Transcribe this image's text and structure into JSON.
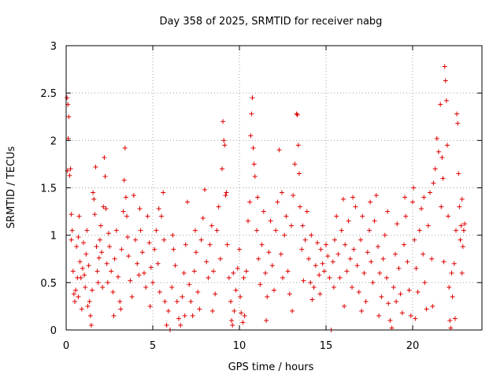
{
  "chart_data": {
    "type": "scatter",
    "title": "Day 358 of 2025, SRMTID for receiver nabg",
    "xlabel": "GPS time / hours",
    "ylabel": "SRMTID / TECUs",
    "xlim": [
      0,
      24
    ],
    "ylim": [
      0,
      3
    ],
    "x_ticks": [
      0,
      5,
      10,
      15,
      20
    ],
    "x_tick_labels": [
      "0",
      "5",
      "10",
      "15",
      "20"
    ],
    "y_ticks": [
      0,
      0.5,
      1,
      1.5,
      2,
      2.5,
      3
    ],
    "y_tick_labels": [
      "0",
      "0.5",
      "1",
      "1.5",
      "2",
      "2.5",
      "3"
    ],
    "grid": true,
    "marker": "+",
    "marker_color": "#e00000",
    "series": [
      {
        "name": "SRMTID",
        "points": [
          [
            0.05,
            2.45
          ],
          [
            0.1,
            2.38
          ],
          [
            0.15,
            2.25
          ],
          [
            0.12,
            2.02
          ],
          [
            0.08,
            1.68
          ],
          [
            0.2,
            1.63
          ],
          [
            0.25,
            1.7
          ],
          [
            0.3,
            1.22
          ],
          [
            0.35,
            1.05
          ],
          [
            0.4,
            0.62
          ],
          [
            0.45,
            0.38
          ],
          [
            0.5,
            0.3
          ],
          [
            0.55,
            0.42
          ],
          [
            0.6,
            0.88
          ],
          [
            0.65,
            0.55
          ],
          [
            0.7,
            0.98
          ],
          [
            0.75,
            1.2
          ],
          [
            0.8,
            0.72
          ],
          [
            0.85,
            0.55
          ],
          [
            0.9,
            0.22
          ],
          [
            0.95,
            0.65
          ],
          [
            1.0,
            0.92
          ],
          [
            1.05,
            0.58
          ],
          [
            1.1,
            0.45
          ],
          [
            1.15,
            0.8
          ],
          [
            1.2,
            1.05
          ],
          [
            1.3,
            0.68
          ],
          [
            1.35,
            0.3
          ],
          [
            1.4,
            0.15
          ],
          [
            1.45,
            0.05
          ],
          [
            1.5,
            0.42
          ],
          [
            1.55,
            1.45
          ],
          [
            1.6,
            1.38
          ],
          [
            1.65,
            1.22
          ],
          [
            1.7,
            1.72
          ],
          [
            1.75,
            0.88
          ],
          [
            1.8,
            0.62
          ],
          [
            1.85,
            0.5
          ],
          [
            1.9,
            0.76
          ],
          [
            1.95,
            0.95
          ],
          [
            2.0,
            1.1
          ],
          [
            2.05,
            0.82
          ],
          [
            2.1,
            0.45
          ],
          [
            2.15,
            1.3
          ],
          [
            2.2,
            1.82
          ],
          [
            2.25,
            1.62
          ],
          [
            2.3,
            1.28
          ],
          [
            2.35,
            0.7
          ],
          [
            2.4,
            0.5
          ],
          [
            2.5,
            0.88
          ],
          [
            2.6,
            0.62
          ],
          [
            2.7,
            0.4
          ],
          [
            2.8,
            0.75
          ],
          [
            2.9,
            1.05
          ],
          [
            3.0,
            0.56
          ],
          [
            3.1,
            0.3
          ],
          [
            3.15,
            0.22
          ],
          [
            3.2,
            0.85
          ],
          [
            3.3,
            1.25
          ],
          [
            3.35,
            1.58
          ],
          [
            3.4,
            1.92
          ],
          [
            3.45,
            1.4
          ],
          [
            3.5,
            1.2
          ],
          [
            3.6,
            0.78
          ],
          [
            3.7,
            0.52
          ],
          [
            3.8,
            0.35
          ],
          [
            3.9,
            1.42
          ],
          [
            4.0,
            0.95
          ],
          [
            4.1,
            0.7
          ],
          [
            4.2,
            0.58
          ],
          [
            4.3,
            1.05
          ],
          [
            4.4,
            0.82
          ],
          [
            4.5,
            0.6
          ],
          [
            4.6,
            0.45
          ],
          [
            4.7,
            1.2
          ],
          [
            4.8,
            0.92
          ],
          [
            4.9,
            0.66
          ],
          [
            5.0,
            0.5
          ],
          [
            5.1,
            0.85
          ],
          [
            5.2,
            1.05
          ],
          [
            5.3,
            0.7
          ],
          [
            5.4,
            0.4
          ],
          [
            5.5,
            1.2
          ],
          [
            5.6,
            1.45
          ],
          [
            5.65,
            0.95
          ],
          [
            5.7,
            0.3
          ],
          [
            5.8,
            0.05
          ],
          [
            5.9,
            0.2
          ],
          [
            6.0,
            0.0
          ],
          [
            6.1,
            0.45
          ],
          [
            6.2,
            0.85
          ],
          [
            6.3,
            0.68
          ],
          [
            6.4,
            0.3
          ],
          [
            6.5,
            0.12
          ],
          [
            6.6,
            0.05
          ],
          [
            6.7,
            0.35
          ],
          [
            6.8,
            0.6
          ],
          [
            6.9,
            0.9
          ],
          [
            7.0,
            1.35
          ],
          [
            7.1,
            0.48
          ],
          [
            7.2,
            0.3
          ],
          [
            7.3,
            0.15
          ],
          [
            7.4,
            0.62
          ],
          [
            7.5,
            0.82
          ],
          [
            7.6,
            0.4
          ],
          [
            7.7,
            0.22
          ],
          [
            7.8,
            0.95
          ],
          [
            7.9,
            1.18
          ],
          [
            8.0,
            1.48
          ],
          [
            8.1,
            0.72
          ],
          [
            8.2,
            0.55
          ],
          [
            8.3,
            0.9
          ],
          [
            8.4,
            1.1
          ],
          [
            8.5,
            0.62
          ],
          [
            8.6,
            0.38
          ],
          [
            8.7,
            1.05
          ],
          [
            8.8,
            1.3
          ],
          [
            8.9,
            0.75
          ],
          [
            9.0,
            1.7
          ],
          [
            9.05,
            2.2
          ],
          [
            9.1,
            2.0
          ],
          [
            9.15,
            1.95
          ],
          [
            9.2,
            1.42
          ],
          [
            9.3,
            0.9
          ],
          [
            9.4,
            0.55
          ],
          [
            9.5,
            0.3
          ],
          [
            9.55,
            0.1
          ],
          [
            9.6,
            0.05
          ],
          [
            9.7,
            0.2
          ],
          [
            9.8,
            0.42
          ],
          [
            9.9,
            0.65
          ],
          [
            10.0,
            0.85
          ],
          [
            10.05,
            0.35
          ],
          [
            10.1,
            0.18
          ],
          [
            10.2,
            0.08
          ],
          [
            10.3,
            0.15
          ],
          [
            10.4,
            0.62
          ],
          [
            10.5,
            1.15
          ],
          [
            10.6,
            1.35
          ],
          [
            10.65,
            2.05
          ],
          [
            10.7,
            2.28
          ],
          [
            10.75,
            2.45
          ],
          [
            10.8,
            1.92
          ],
          [
            10.85,
            1.75
          ],
          [
            10.9,
            1.62
          ],
          [
            11.0,
            1.05
          ],
          [
            11.1,
            0.75
          ],
          [
            11.2,
            0.48
          ],
          [
            11.3,
            0.9
          ],
          [
            11.4,
            1.25
          ],
          [
            11.5,
            0.6
          ],
          [
            11.6,
            0.35
          ],
          [
            11.7,
            0.82
          ],
          [
            11.8,
            1.15
          ],
          [
            11.9,
            0.68
          ],
          [
            12.0,
            0.42
          ],
          [
            12.1,
            1.05
          ],
          [
            12.2,
            1.35
          ],
          [
            12.3,
            1.9
          ],
          [
            12.4,
            0.8
          ],
          [
            12.5,
            0.55
          ],
          [
            12.6,
            1.0
          ],
          [
            12.7,
            1.2
          ],
          [
            12.8,
            0.62
          ],
          [
            12.9,
            0.38
          ],
          [
            13.0,
            1.1
          ],
          [
            13.1,
            1.42
          ],
          [
            13.2,
            1.75
          ],
          [
            13.3,
            2.28
          ],
          [
            13.35,
            2.27
          ],
          [
            13.4,
            1.95
          ],
          [
            13.45,
            1.65
          ],
          [
            13.5,
            1.3
          ],
          [
            13.6,
            0.85
          ],
          [
            13.7,
            0.52
          ],
          [
            13.8,
            0.95
          ],
          [
            13.9,
            1.25
          ],
          [
            14.0,
            0.75
          ],
          [
            14.1,
            0.5
          ],
          [
            14.2,
            0.32
          ],
          [
            14.3,
            0.45
          ],
          [
            14.4,
            0.68
          ],
          [
            14.5,
            0.92
          ],
          [
            14.6,
            0.58
          ],
          [
            14.7,
            0.85
          ],
          [
            14.8,
            0.7
          ],
          [
            14.9,
            0.62
          ],
          [
            15.0,
            0.9
          ],
          [
            15.1,
            0.78
          ],
          [
            15.2,
            0.55
          ],
          [
            15.3,
            0.0
          ],
          [
            15.4,
            0.72
          ],
          [
            15.5,
            0.95
          ],
          [
            15.6,
            1.2
          ],
          [
            15.7,
            0.8
          ],
          [
            15.8,
            0.55
          ],
          [
            15.9,
            1.05
          ],
          [
            16.0,
            1.38
          ],
          [
            16.1,
            0.9
          ],
          [
            16.2,
            0.62
          ],
          [
            16.3,
            1.15
          ],
          [
            16.4,
            0.75
          ],
          [
            16.5,
            0.45
          ],
          [
            16.6,
            0.85
          ],
          [
            16.7,
            1.3
          ],
          [
            16.8,
            0.68
          ],
          [
            16.9,
            0.4
          ],
          [
            17.0,
            0.95
          ],
          [
            17.1,
            1.2
          ],
          [
            17.2,
            0.6
          ],
          [
            17.3,
            0.3
          ],
          [
            17.4,
            0.82
          ],
          [
            17.5,
            1.05
          ],
          [
            17.6,
            0.72
          ],
          [
            17.7,
            0.5
          ],
          [
            17.8,
            1.15
          ],
          [
            17.9,
            1.42
          ],
          [
            18.0,
            0.88
          ],
          [
            18.1,
            0.6
          ],
          [
            18.2,
            0.35
          ],
          [
            18.3,
            0.75
          ],
          [
            18.4,
            1.0
          ],
          [
            18.5,
            0.55
          ],
          [
            18.6,
            0.28
          ],
          [
            18.7,
            0.1
          ],
          [
            18.8,
            0.02
          ],
          [
            18.9,
            0.45
          ],
          [
            19.0,
            0.8
          ],
          [
            19.1,
            1.12
          ],
          [
            19.2,
            0.65
          ],
          [
            19.3,
            0.38
          ],
          [
            19.4,
            0.18
          ],
          [
            19.5,
            0.9
          ],
          [
            19.6,
            1.2
          ],
          [
            19.7,
            0.72
          ],
          [
            19.8,
            0.42
          ],
          [
            19.9,
            0.15
          ],
          [
            20.0,
            1.35
          ],
          [
            20.05,
            1.5
          ],
          [
            20.1,
            0.95
          ],
          [
            20.2,
            0.65
          ],
          [
            20.3,
            0.4
          ],
          [
            20.4,
            1.05
          ],
          [
            20.5,
            1.28
          ],
          [
            20.6,
            0.8
          ],
          [
            20.7,
            0.5
          ],
          [
            20.8,
            0.22
          ],
          [
            20.9,
            1.1
          ],
          [
            21.0,
            1.45
          ],
          [
            21.1,
            0.75
          ],
          [
            21.2,
            1.55
          ],
          [
            21.3,
            1.7
          ],
          [
            21.4,
            2.02
          ],
          [
            21.5,
            1.88
          ],
          [
            21.6,
            2.38
          ],
          [
            21.7,
            1.82
          ],
          [
            21.75,
            1.6
          ],
          [
            21.8,
            0.72
          ],
          [
            21.85,
            2.78
          ],
          [
            21.9,
            2.63
          ],
          [
            21.95,
            2.42
          ],
          [
            22.0,
            1.95
          ],
          [
            22.05,
            1.2
          ],
          [
            22.1,
            0.45
          ],
          [
            22.15,
            0.1
          ],
          [
            22.2,
            0.02
          ],
          [
            22.3,
            0.35
          ],
          [
            22.4,
            0.7
          ],
          [
            22.5,
            1.05
          ],
          [
            22.55,
            2.28
          ],
          [
            22.6,
            2.18
          ],
          [
            22.65,
            1.65
          ],
          [
            22.7,
            1.3
          ],
          [
            22.75,
            0.95
          ],
          [
            22.8,
            1.1
          ],
          [
            22.85,
            1.38
          ],
          [
            22.9,
            0.88
          ],
          [
            22.95,
            1.05
          ],
          [
            23.0,
            1.12
          ],
          [
            22.45,
            0.12
          ],
          [
            0.3,
            0.95
          ],
          [
            0.7,
            0.35
          ],
          [
            1.25,
            0.25
          ],
          [
            2.45,
            1.02
          ],
          [
            2.75,
            0.15
          ],
          [
            3.55,
            0.98
          ],
          [
            4.25,
            1.28
          ],
          [
            4.85,
            0.25
          ],
          [
            5.35,
            1.28
          ],
          [
            6.15,
            1.0
          ],
          [
            6.85,
            0.15
          ],
          [
            7.45,
            1.05
          ],
          [
            8.45,
            0.2
          ],
          [
            9.25,
            1.45
          ],
          [
            9.65,
            0.6
          ],
          [
            10.25,
            0.55
          ],
          [
            11.05,
            1.4
          ],
          [
            11.55,
            0.1
          ],
          [
            12.45,
            1.45
          ],
          [
            13.05,
            0.2
          ],
          [
            13.65,
            1.1
          ],
          [
            14.15,
            1.0
          ],
          [
            14.65,
            0.38
          ],
          [
            15.45,
            0.45
          ],
          [
            16.05,
            0.25
          ],
          [
            16.55,
            1.4
          ],
          [
            17.05,
            0.2
          ],
          [
            17.55,
            1.35
          ],
          [
            18.05,
            0.15
          ],
          [
            18.55,
            1.25
          ],
          [
            19.05,
            0.3
          ],
          [
            19.55,
            1.4
          ],
          [
            20.15,
            0.12
          ],
          [
            20.65,
            1.4
          ],
          [
            21.15,
            0.25
          ],
          [
            21.65,
            1.3
          ],
          [
            22.25,
            0.6
          ],
          [
            22.85,
            0.6
          ]
        ]
      }
    ]
  }
}
